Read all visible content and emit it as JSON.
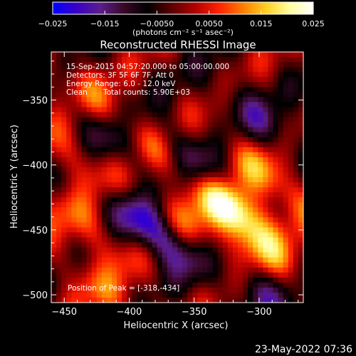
{
  "chart_data": {
    "type": "heatmap",
    "title": "Reconstructed RHESSI Image",
    "annotations": [
      "15-Sep-2015 04:57:20.000 to 05:00:00.000",
      "Detectors: 3F 5F 6F 7F, Att 0",
      "Energy Range: 6.0 - 12.0 keV",
      "Clean",
      "Total counts: 5.90E+03"
    ],
    "peak_label": "Position of Peak = [-318,-434]",
    "xlabel": "Heliocentric X (arcsec)",
    "ylabel": "Heliocentric Y (arcsec)",
    "xlim": [
      -460,
      -266
    ],
    "ylim": [
      -506,
      -313
    ],
    "x_ticks": [
      -450,
      -400,
      -350,
      -300
    ],
    "y_ticks": [
      -350,
      -400,
      -450,
      -500
    ],
    "x_tick_labels": [
      "−450",
      "−400",
      "−350",
      "−300"
    ],
    "y_tick_labels": [
      "−350",
      "−400",
      "−450",
      "−500"
    ],
    "colorbar": {
      "min": -0.025,
      "max": 0.025,
      "ticks": [
        -0.025,
        -0.015,
        -0.005,
        0.005,
        0.015,
        0.025
      ],
      "tick_labels": [
        "−0.025",
        "−0.015",
        "−0.0050",
        "0.0050",
        "0.015",
        "0.025"
      ],
      "unit_label": "(photons cm⁻² s⁻¹ asec⁻²)",
      "colors": [
        "#0000ff",
        "#3a00c8",
        "#5a1e8c",
        "#3a0828",
        "#000000",
        "#5a0000",
        "#b00000",
        "#ff2000",
        "#ff7a00",
        "#ffd020",
        "#ffffa0",
        "#ffffff"
      ]
    },
    "grid": false,
    "features": [
      {
        "kind": "peak",
        "x": -318,
        "y": -434,
        "value": 0.025
      },
      {
        "kind": "positive",
        "x": -290,
        "y": -412,
        "value": 0.014
      },
      {
        "kind": "positive",
        "x": -298,
        "y": -462,
        "value": 0.012
      },
      {
        "kind": "positive",
        "x": -345,
        "y": -455,
        "value": 0.01
      },
      {
        "kind": "positive",
        "x": -430,
        "y": -350,
        "value": 0.011
      },
      {
        "kind": "positive",
        "x": -430,
        "y": -405,
        "value": 0.011
      },
      {
        "kind": "positive",
        "x": -430,
        "y": -450,
        "value": 0.009
      },
      {
        "kind": "positive",
        "x": -420,
        "y": -498,
        "value": 0.008
      },
      {
        "kind": "positive",
        "x": -375,
        "y": -393,
        "value": 0.009
      },
      {
        "kind": "negative",
        "x": -385,
        "y": -448,
        "value": -0.022
      },
      {
        "kind": "negative",
        "x": -415,
        "y": -375,
        "value": -0.012
      },
      {
        "kind": "negative",
        "x": -345,
        "y": -400,
        "value": -0.012
      },
      {
        "kind": "negative",
        "x": -300,
        "y": -365,
        "value": -0.01
      },
      {
        "kind": "negative",
        "x": -300,
        "y": -495,
        "value": -0.011
      }
    ]
  },
  "footer": {
    "timestamp": "23-May-2022 07:36"
  }
}
